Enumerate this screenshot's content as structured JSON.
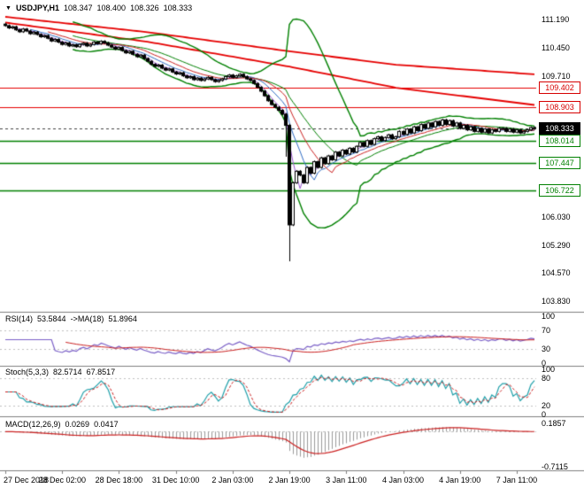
{
  "chart_data": {
    "type": "candlestick",
    "info": {
      "symbol": "USDJPY,H1",
      "open": "108.347",
      "high": "108.400",
      "low": "108.326",
      "close": "108.333"
    },
    "colors": {
      "up": "#ffffff",
      "down": "#000000",
      "outline": "#000000",
      "bollinger": "#008000",
      "trend_ma": "#e60000",
      "support": "#008000",
      "resistance": "#e60000",
      "current": "#000000",
      "rsi": "#7a5fc7",
      "rsi_ma": "#cc2222",
      "stoch_k": "#20a0aa",
      "stoch_d": "#cc2222",
      "macd_hist": "#9a9a9a",
      "macd_signal": "#cc2222",
      "divider": "#808080",
      "pane_level": "#c0c0c0"
    },
    "y_axis": {
      "min": 103.6,
      "max": 111.55,
      "ticks": [
        "111.190",
        "110.450",
        "109.710",
        "106.030",
        "105.290",
        "104.570",
        "103.830"
      ]
    },
    "red_levels": [
      "109.402",
      "108.903"
    ],
    "green_levels": [
      "108.014",
      "107.447",
      "106.722"
    ],
    "current_price": "108.333",
    "trend_ma_upper": [
      [
        0,
        111.25
      ],
      [
        40,
        110.85
      ],
      [
        80,
        110.35
      ],
      [
        110,
        110.0
      ],
      [
        149,
        109.75
      ]
    ],
    "trend_ma_lower": [
      [
        0,
        111.1
      ],
      [
        40,
        110.6
      ],
      [
        80,
        109.95
      ],
      [
        110,
        109.4
      ],
      [
        149,
        108.95
      ]
    ],
    "bollinger": {
      "period": 20,
      "deviation": 2.2
    },
    "short_ma_periods": [
      4,
      8,
      13
    ],
    "candles": {
      "closes": [
        111.02,
        110.96,
        110.99,
        110.91,
        110.86,
        110.93,
        110.88,
        110.81,
        110.85,
        110.79,
        110.73,
        110.76,
        110.69,
        110.62,
        110.66,
        110.59,
        110.53,
        110.57,
        110.49,
        110.52,
        110.47,
        110.53,
        110.56,
        110.49,
        110.53,
        110.59,
        110.55,
        110.61,
        110.57,
        110.51,
        110.46,
        110.41,
        110.45,
        110.37,
        110.31,
        110.35,
        110.27,
        110.21,
        110.25,
        110.16,
        110.09,
        110.01,
        109.96,
        109.99,
        109.91,
        109.86,
        109.89,
        109.81,
        109.76,
        109.79,
        109.71,
        109.66,
        109.69,
        109.61,
        109.65,
        109.59,
        109.63,
        109.67,
        109.61,
        109.56,
        109.59,
        109.63,
        109.69,
        109.73,
        109.67,
        109.71,
        109.75,
        109.69,
        109.63,
        109.59,
        109.51,
        109.41,
        109.31,
        109.19,
        109.06,
        108.96,
        108.89,
        108.81,
        108.71,
        108.42,
        105.82,
        106.92,
        107.22,
        107.12,
        106.92,
        107.32,
        107.17,
        107.47,
        107.32,
        107.57,
        107.42,
        107.62,
        107.52,
        107.72,
        107.62,
        107.77,
        107.67,
        107.82,
        107.72,
        107.87,
        107.97,
        107.87,
        108.02,
        107.92,
        108.07,
        108.12,
        108.02,
        108.1,
        108.17,
        108.07,
        108.12,
        108.26,
        108.18,
        108.32,
        108.22,
        108.38,
        108.28,
        108.44,
        108.34,
        108.48,
        108.38,
        108.52,
        108.42,
        108.56,
        108.44,
        108.54,
        108.4,
        108.48,
        108.34,
        108.42,
        108.3,
        108.38,
        108.26,
        108.34,
        108.24,
        108.32,
        108.22,
        108.3,
        108.26,
        108.34,
        108.34,
        108.26,
        108.32,
        108.24,
        108.3,
        108.22,
        108.26,
        108.3,
        108.36,
        108.333
      ],
      "low_overrides": {
        "79": 107.6,
        "80": 104.87
      }
    },
    "x_axis": {
      "labels": [
        "27 Dec 2018",
        "28 Dec 02:00",
        "28 Dec 18:00",
        "31 Dec 10:00",
        "2 Jan 03:00",
        "2 Jan 19:00",
        "3 Jan 11:00",
        "4 Jan 03:00",
        "4 Jan 19:00",
        "7 Jan 11:00"
      ],
      "indices": [
        0,
        16,
        32,
        48,
        64,
        80,
        96,
        112,
        128,
        144
      ]
    },
    "rsi": {
      "name": "RSI(14)",
      "value": "53.5844",
      "ma_name": "->MA(18)",
      "ma_value": "51.8964",
      "period": 14,
      "ma_period": 18,
      "levels": [
        100,
        70,
        30,
        0
      ],
      "dashed": [
        70,
        30
      ]
    },
    "stoch": {
      "name": "Stoch(5,3,3)",
      "value": "82.5714",
      "signal_value": "67.8517",
      "k": 5,
      "d": 3,
      "slowing": 3,
      "levels": [
        100,
        80,
        20,
        0
      ],
      "dashed": [
        80,
        20
      ]
    },
    "macd": {
      "name": "MACD(12,26,9)",
      "value": "0.0269",
      "signal_value": "0.0417",
      "fast": 12,
      "slow": 26,
      "signal": 9,
      "range": [
        -1.05,
        0.28
      ],
      "top_label": "0.1857",
      "bottom_label": "-0.7115"
    }
  }
}
